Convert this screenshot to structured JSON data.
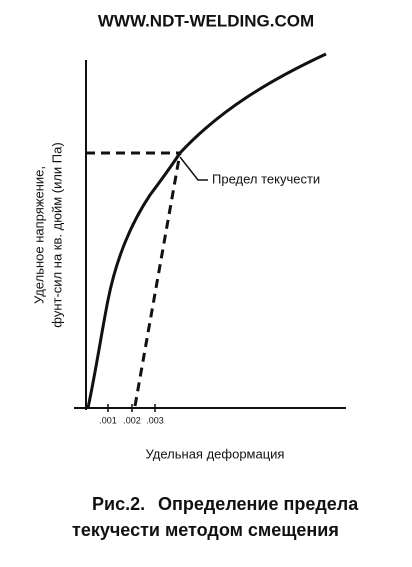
{
  "header": {
    "site": "WWW.NDT-WELDING.COM"
  },
  "graph": {
    "y_axis_label": [
      "Удельное напряжение,",
      "фунт-сил на кв. дюйм (или Па)"
    ],
    "x_axis_label": "Удельная деформация",
    "x_tick_labels": [
      ".001",
      ".002",
      ".003"
    ],
    "annotation": "Предел текучести"
  },
  "caption": {
    "figure": "Рис.2.",
    "lines": [
      "Определение предела",
      "текучести методом смещения"
    ]
  }
}
